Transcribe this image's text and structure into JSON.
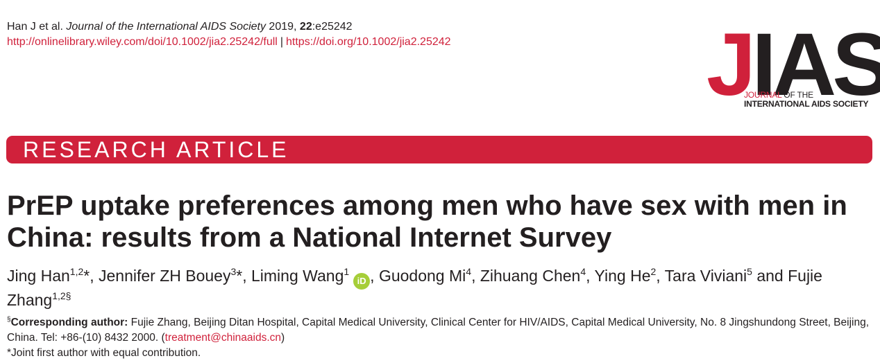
{
  "citation": {
    "authors": "Han J et al.",
    "journal": "Journal of the International AIDS Society",
    "year": "2019,",
    "volume": "22",
    "article_id": ":e25242"
  },
  "links": {
    "full_text": "http://onlinelibrary.wiley.com/doi/10.1002/jia2.25242/full",
    "separator": "|",
    "doi": "https://doi.org/10.1002/jia2.25242"
  },
  "logo": {
    "letter_j": "J",
    "letters_ias": "IAS",
    "line1_red": "JOURNAL",
    "line1_rest": " OF THE",
    "line2": "INTERNATIONAL AIDS SOCIETY"
  },
  "banner": {
    "label": "RESEARCH ARTICLE"
  },
  "title": "PrEP uptake preferences among men who have sex with men in China: results from a National Internet Survey",
  "authors": [
    {
      "name": "Jing Han",
      "sup": "1,2",
      "mark": "*",
      "sep": ", "
    },
    {
      "name": "Jennifer ZH Bouey",
      "sup": "3",
      "mark": "*",
      "sep": ", "
    },
    {
      "name": "Liming Wang",
      "sup": "1",
      "mark": "",
      "sep": ", "
    },
    {
      "name": "Guodong Mi",
      "sup": "4",
      "mark": "",
      "sep": ", "
    },
    {
      "name": "Zihuang Chen",
      "sup": "4",
      "mark": "",
      "sep": ", "
    },
    {
      "name": "Ying He",
      "sup": "2",
      "mark": "",
      "sep": ", "
    },
    {
      "name": "Tara Viviani",
      "sup": "5",
      "mark": "",
      "sep": " and "
    },
    {
      "name": "Fujie Zhang",
      "sup": "1,2§",
      "mark": "",
      "sep": ""
    }
  ],
  "orcid_label": "iD",
  "corresponding": {
    "symbol": "§",
    "label": "Corresponding author:",
    "text": " Fujie Zhang, Beijing Ditan Hospital, Capital Medical University, Clinical Center for HIV/AIDS, Capital Medical University, No. 8 Jingshundong Street, Beijing, China. Tel: +86-(10) 8432 2000. (",
    "email": "treatment@chinaaids.cn",
    "close": ")"
  },
  "joint_note": "*Joint first author with equal contribution.",
  "colors": {
    "brand_red": "#d0213b",
    "text": "#231f20",
    "orcid_green": "#a6ce39"
  }
}
